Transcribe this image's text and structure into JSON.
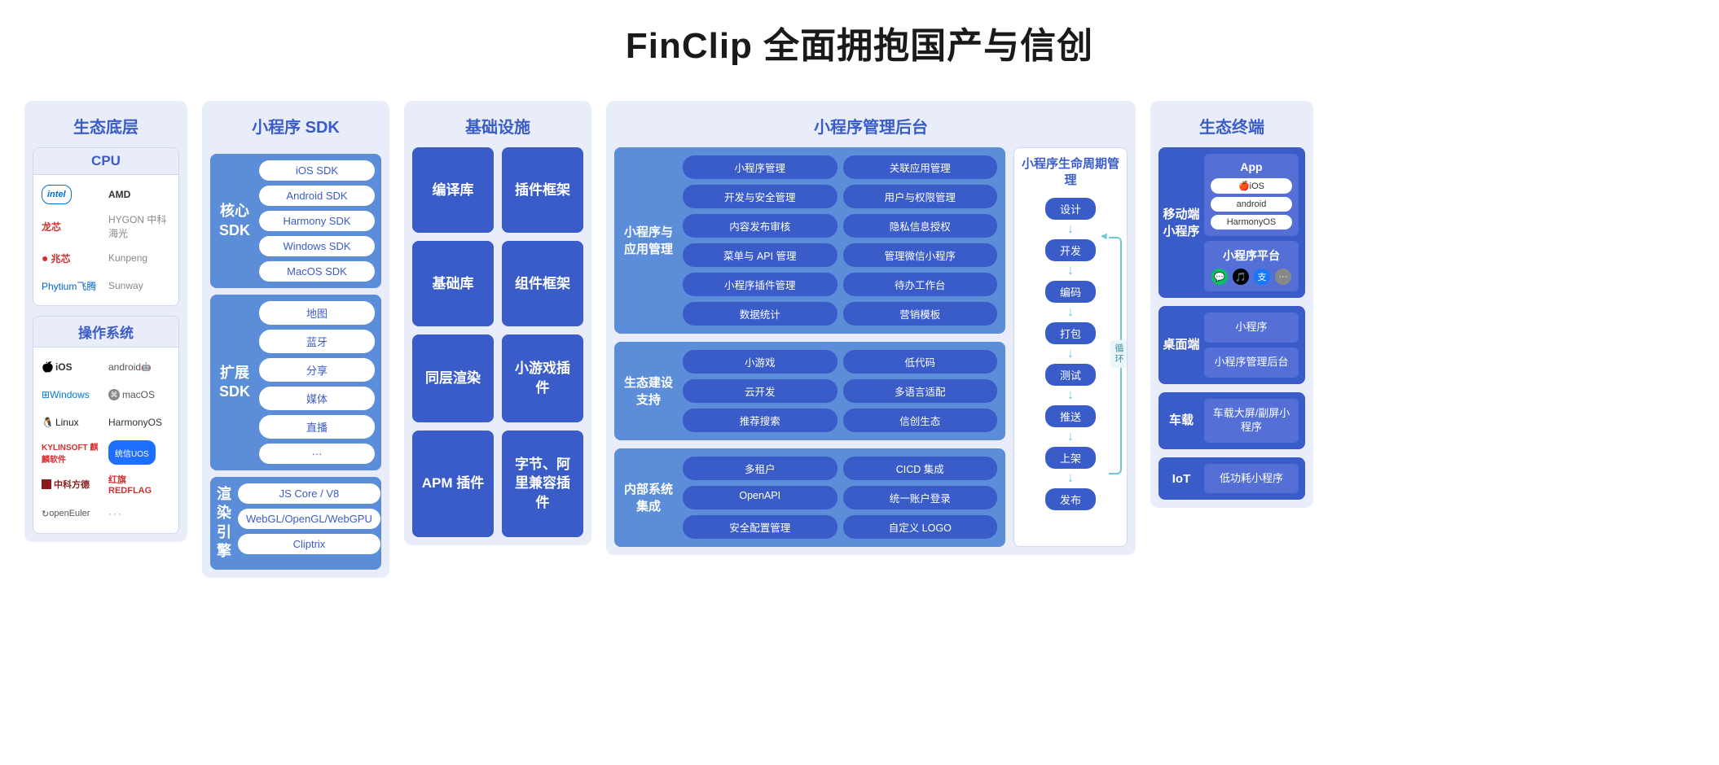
{
  "title": "FinClip 全面拥抱国产与信创",
  "colors": {
    "panel_bg": "#e8edf9",
    "dark_blue": "#3a5cc8",
    "mid_blue": "#5b8dd9",
    "card_blue": "#5470d6",
    "arrow": "#6fc7d4"
  },
  "col1": {
    "header": "生态底层",
    "cpu": {
      "title": "CPU",
      "items": [
        "intel",
        "AMD",
        "龙芯",
        "HYGON 中科海光",
        "兆芯",
        "Kunpeng",
        "Phytium飞腾",
        "Sunway"
      ]
    },
    "os": {
      "title": "操作系统",
      "items": [
        "iOS",
        "android",
        "Windows",
        "macOS",
        "Linux",
        "HarmonyOS",
        "KYLINSOFT 麒麟软件",
        "统信UOS",
        "中科方德",
        "红旗 REDFLAG",
        "openEuler",
        "···"
      ]
    }
  },
  "col2": {
    "header": "小程序 SDK",
    "core": {
      "label": "核心 SDK",
      "items": [
        "iOS SDK",
        "Android SDK",
        "Harmony SDK",
        "Windows SDK",
        "MacOS SDK"
      ]
    },
    "ext": {
      "label": "扩展 SDK",
      "items": [
        "地图",
        "蓝牙",
        "分享",
        "媒体",
        "直播",
        "···"
      ]
    },
    "render": {
      "label": "渲染引擎",
      "items": [
        "JS Core / V8",
        "WebGL/OpenGL/WebGPU",
        "Cliptrix"
      ]
    }
  },
  "col3": {
    "header": "基础设施",
    "boxes": [
      "编译库",
      "插件框架",
      "基础库",
      "组件框架",
      "同层渲染",
      "小游戏插件",
      "APM 插件",
      "字节、阿里兼容插件"
    ]
  },
  "col4": {
    "header": "小程序管理后台",
    "mgmt": {
      "label": "小程序与应用管理",
      "items": [
        "小程序管理",
        "关联应用管理",
        "开发与安全管理",
        "用户与权限管理",
        "内容发布审核",
        "隐私信息授权",
        "菜单与 API 管理",
        "管理微信小程序",
        "小程序插件管理",
        "待办工作台",
        "数据统计",
        "营销模板"
      ]
    },
    "eco": {
      "label": "生态建设支持",
      "items": [
        "小游戏",
        "低代码",
        "云开发",
        "多语言适配",
        "推荐搜索",
        "信创生态"
      ]
    },
    "sys": {
      "label": "内部系统集成",
      "items": [
        "多租户",
        "CICD 集成",
        "OpenAPI",
        "统一账户登录",
        "安全配置管理",
        "自定义 LOGO"
      ]
    },
    "lifecycle": {
      "title": "小程序生命周期管理",
      "steps": [
        "设计",
        "开发",
        "编码",
        "打包",
        "测试",
        "推送",
        "上架",
        "发布"
      ],
      "loop_label": "循环"
    }
  },
  "col5": {
    "header": "生态终端",
    "mobile": {
      "label": "移动端小程序",
      "app": {
        "title": "App",
        "os": [
          "🍎iOS",
          "android",
          "HarmonyOS"
        ]
      },
      "platform": {
        "title": "小程序平台",
        "icons": [
          "💬",
          "🎵",
          "支",
          "···"
        ]
      }
    },
    "desktop": {
      "label": "桌面端",
      "items": [
        "小程序",
        "小程序管理后台"
      ]
    },
    "car": {
      "label": "车载",
      "items": [
        "车载大屏/副屏小程序"
      ]
    },
    "iot": {
      "label": "IoT",
      "items": [
        "低功耗小程序"
      ]
    }
  }
}
